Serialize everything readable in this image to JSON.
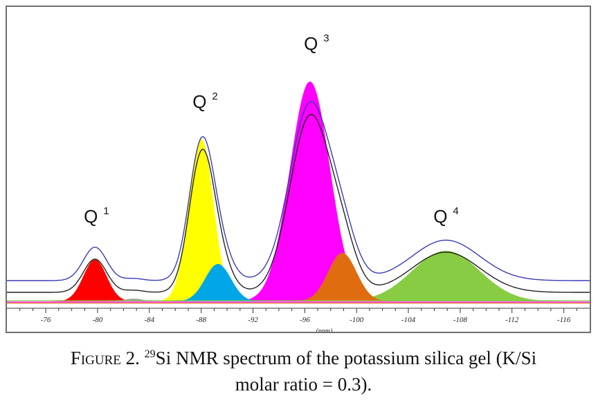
{
  "chart_data": {
    "type": "line",
    "x_axis": {
      "label": "(ppm)",
      "range": [
        -73,
        -118
      ],
      "ticks": [
        "-76",
        "-80",
        "-84",
        "-88",
        "-92",
        "-96",
        "-100",
        "-104",
        "-108",
        "-112",
        "-116"
      ],
      "tick_values": [
        -76,
        -80,
        -84,
        -88,
        -92,
        -96,
        -100,
        -104,
        -108,
        -112,
        -116
      ],
      "reversed": true
    },
    "peak_labels": [
      {
        "name": "Q",
        "sup": "1",
        "x": -79.8
      },
      {
        "name": "Q",
        "sup": "2",
        "x": -88.2
      },
      {
        "name": "Q",
        "sup": "3",
        "x": -96.8
      },
      {
        "name": "Q",
        "sup": "4",
        "x": -106.8
      }
    ],
    "components": [
      {
        "color": "#ff0000",
        "center": -79.8,
        "height": 0.19,
        "width": 0.9
      },
      {
        "color": "#9e9e9e",
        "center": -82.8,
        "height": 0.012,
        "width": 0.7
      },
      {
        "color": "#ffff00",
        "center": -88.0,
        "height": 0.74,
        "width": 0.95
      },
      {
        "color": "#00a6e6",
        "center": -89.3,
        "height": 0.17,
        "width": 1.0
      },
      {
        "color": "#ff00ff",
        "center": -96.4,
        "height": 1.0,
        "width": 1.55
      },
      {
        "color": "#e06c10",
        "center": -98.9,
        "height": 0.22,
        "width": 1.1
      },
      {
        "color": "#88cc44",
        "center": -106.9,
        "height": 0.23,
        "width": 2.6
      }
    ],
    "traces": [
      {
        "name": "",
        "color": "#3a3ab5"
      },
      {
        "name": "",
        "color": "#222222"
      }
    ]
  },
  "caption": {
    "prefix": "Figure 2.",
    "sup": "29",
    "text": "Si NMR spectrum of the potassium silica gel (K/Si",
    "line2": "molar ratio = 0.3)."
  }
}
